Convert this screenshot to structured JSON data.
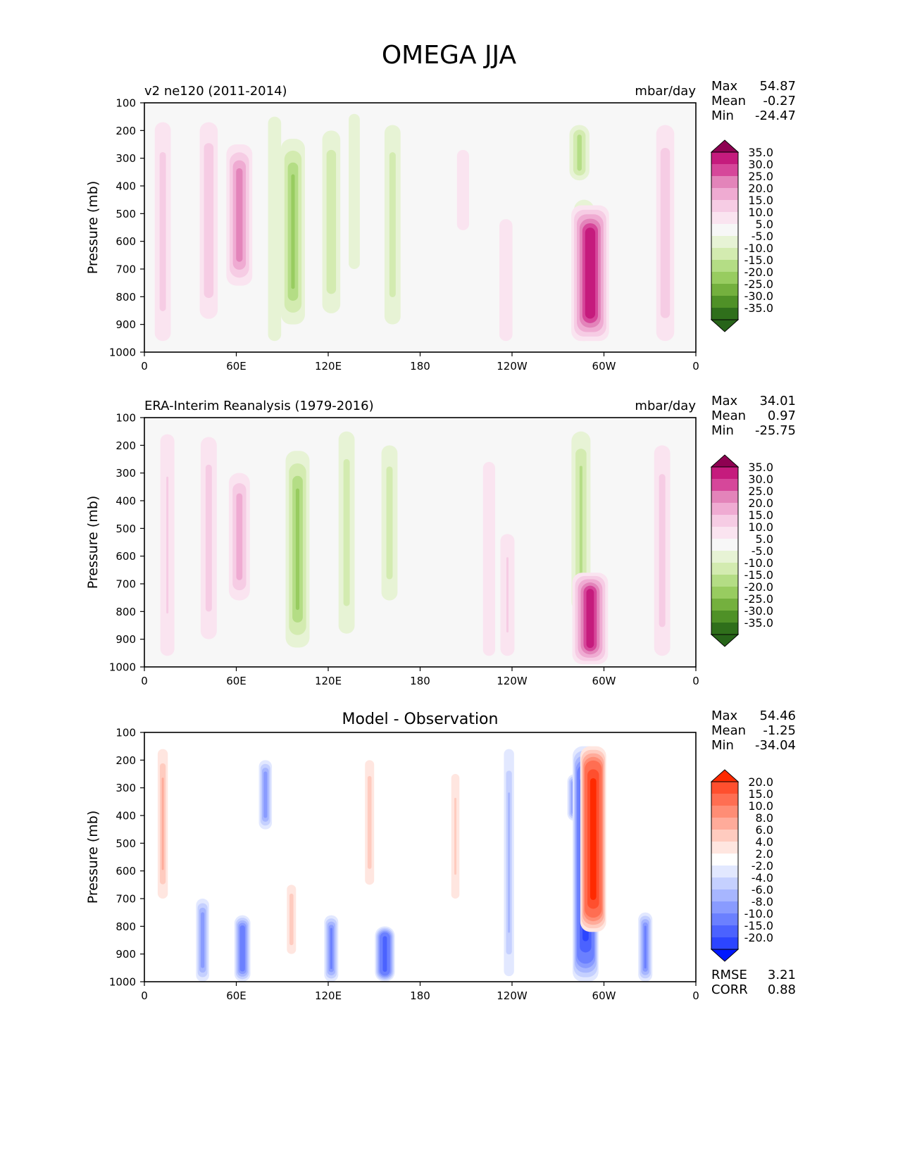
{
  "figure": {
    "title": "OMEGA JJA"
  },
  "chart_data": [
    {
      "type": "heatmap",
      "panel": "test",
      "title_left": "v2 ne120 (2011-2014)",
      "units": "mbar/day",
      "ylabel": "Pressure (mb)",
      "xticks": [
        "0",
        "60E",
        "120E",
        "180",
        "120W",
        "60W",
        "0"
      ],
      "x_values": [
        0,
        60,
        120,
        180,
        240,
        300,
        360
      ],
      "xlim": [
        0,
        360
      ],
      "yticks": [
        "100",
        "200",
        "300",
        "400",
        "500",
        "600",
        "700",
        "800",
        "900",
        "1000"
      ],
      "ylim": [
        1000,
        100
      ],
      "stats": {
        "max_label": "Max",
        "max": "54.87",
        "mean_label": "Mean",
        "mean": "-0.27",
        "min_label": "Min",
        "min": "-24.47"
      },
      "levels": [
        "35.0",
        "30.0",
        "25.0",
        "20.0",
        "15.0",
        "10.0",
        "5.0",
        "-5.0",
        "-10.0",
        "-15.0",
        "-20.0",
        "-25.0",
        "-30.0",
        "-35.0"
      ],
      "colors": [
        "#8e0152",
        "#c51b7d",
        "#d6479a",
        "#e384ba",
        "#efabd2",
        "#f6cce4",
        "#fae4f0",
        "#f7f7f7",
        "#e7f3d5",
        "#d3ebb0",
        "#b4dd85",
        "#98cc60",
        "#74b03e",
        "#4f9127",
        "#2f6f1b",
        "#276419"
      ],
      "features": [
        {
          "sign": "pos",
          "lon": 12,
          "p_top": 170,
          "p_bot": 960,
          "amp": 12
        },
        {
          "sign": "pos",
          "lon": 42,
          "p_top": 170,
          "p_bot": 880,
          "amp": 14
        },
        {
          "sign": "pos",
          "lon": 62,
          "p_top": 250,
          "p_bot": 760,
          "amp": 22
        },
        {
          "sign": "neg",
          "lon": 85,
          "p_top": 150,
          "p_bot": 960,
          "amp": 9
        },
        {
          "sign": "neg",
          "lon": 97,
          "p_top": 230,
          "p_bot": 900,
          "amp": 20
        },
        {
          "sign": "neg",
          "lon": 122,
          "p_top": 200,
          "p_bot": 860,
          "amp": 14
        },
        {
          "sign": "neg",
          "lon": 137,
          "p_top": 140,
          "p_bot": 700,
          "amp": 7
        },
        {
          "sign": "neg",
          "lon": 162,
          "p_top": 180,
          "p_bot": 900,
          "amp": 12
        },
        {
          "sign": "pos",
          "lon": 208,
          "p_top": 270,
          "p_bot": 560,
          "amp": 8
        },
        {
          "sign": "pos",
          "lon": 236,
          "p_top": 520,
          "p_bot": 960,
          "amp": 9
        },
        {
          "sign": "neg",
          "lon": 284,
          "p_top": 180,
          "p_bot": 380,
          "amp": 16
        },
        {
          "sign": "neg",
          "lon": 287,
          "p_top": 450,
          "p_bot": 960,
          "amp": 16
        },
        {
          "sign": "pos",
          "lon": 291,
          "p_top": 470,
          "p_bot": 960,
          "amp": 34
        },
        {
          "sign": "pos",
          "lon": 340,
          "p_top": 180,
          "p_bot": 960,
          "amp": 14
        }
      ]
    },
    {
      "type": "heatmap",
      "panel": "reference",
      "title_left": "ERA-Interim Reanalysis (1979-2016)",
      "units": "mbar/day",
      "ylabel": "Pressure (mb)",
      "xticks": [
        "0",
        "60E",
        "120E",
        "180",
        "120W",
        "60W",
        "0"
      ],
      "x_values": [
        0,
        60,
        120,
        180,
        240,
        300,
        360
      ],
      "xlim": [
        0,
        360
      ],
      "yticks": [
        "100",
        "200",
        "300",
        "400",
        "500",
        "600",
        "700",
        "800",
        "900",
        "1000"
      ],
      "ylim": [
        1000,
        100
      ],
      "stats": {
        "max_label": "Max",
        "max": "34.01",
        "mean_label": "Mean",
        "mean": "0.97",
        "min_label": "Min",
        "min": "-25.75"
      },
      "levels": [
        "35.0",
        "30.0",
        "25.0",
        "20.0",
        "15.0",
        "10.0",
        "5.0",
        "-5.0",
        "-10.0",
        "-15.0",
        "-20.0",
        "-25.0",
        "-30.0",
        "-35.0"
      ],
      "colors": [
        "#8e0152",
        "#c51b7d",
        "#d6479a",
        "#e384ba",
        "#efabd2",
        "#f6cce4",
        "#fae4f0",
        "#f7f7f7",
        "#e7f3d5",
        "#d3ebb0",
        "#b4dd85",
        "#98cc60",
        "#74b03e",
        "#4f9127",
        "#2f6f1b",
        "#276419"
      ],
      "features": [
        {
          "sign": "pos",
          "lon": 15,
          "p_top": 160,
          "p_bot": 960,
          "amp": 10
        },
        {
          "sign": "pos",
          "lon": 42,
          "p_top": 170,
          "p_bot": 900,
          "amp": 12
        },
        {
          "sign": "pos",
          "lon": 62,
          "p_top": 300,
          "p_bot": 760,
          "amp": 17
        },
        {
          "sign": "neg",
          "lon": 100,
          "p_top": 220,
          "p_bot": 930,
          "amp": 20
        },
        {
          "sign": "neg",
          "lon": 132,
          "p_top": 150,
          "p_bot": 880,
          "amp": 12
        },
        {
          "sign": "neg",
          "lon": 160,
          "p_top": 200,
          "p_bot": 760,
          "amp": 12
        },
        {
          "sign": "pos",
          "lon": 225,
          "p_top": 260,
          "p_bot": 960,
          "amp": 8
        },
        {
          "sign": "pos",
          "lon": 237,
          "p_top": 520,
          "p_bot": 960,
          "amp": 10
        },
        {
          "sign": "neg",
          "lon": 285,
          "p_top": 150,
          "p_bot": 800,
          "amp": 15
        },
        {
          "sign": "pos",
          "lon": 291,
          "p_top": 660,
          "p_bot": 990,
          "amp": 32
        },
        {
          "sign": "pos",
          "lon": 338,
          "p_top": 200,
          "p_bot": 960,
          "amp": 12
        }
      ]
    },
    {
      "type": "heatmap",
      "panel": "difference",
      "title": "Model - Observation",
      "ylabel": "Pressure (mb)",
      "xticks": [
        "0",
        "60E",
        "120E",
        "180",
        "120W",
        "60W",
        "0"
      ],
      "x_values": [
        0,
        60,
        120,
        180,
        240,
        300,
        360
      ],
      "xlim": [
        0,
        360
      ],
      "yticks": [
        "100",
        "200",
        "300",
        "400",
        "500",
        "600",
        "700",
        "800",
        "900",
        "1000"
      ],
      "ylim": [
        1000,
        100
      ],
      "stats": {
        "max_label": "Max",
        "max": "54.46",
        "mean_label": "Mean",
        "mean": "-1.25",
        "min_label": "Min",
        "min": "-34.04"
      },
      "metrics": {
        "rmse_label": "RMSE",
        "rmse": "3.21",
        "corr_label": "CORR",
        "corr": "0.88"
      },
      "levels": [
        "20.0",
        "15.0",
        "10.0",
        "8.0",
        "6.0",
        "4.0",
        "2.0",
        "-2.0",
        "-4.0",
        "-6.0",
        "-8.0",
        "-10.0",
        "-15.0",
        "-20.0"
      ],
      "colors": [
        "#ff2a00",
        "#ff4f2e",
        "#ff6e52",
        "#ff8d75",
        "#ffab9a",
        "#ffcbbf",
        "#ffe6e0",
        "#ffffff",
        "#e2e8ff",
        "#c5d0ff",
        "#a7b6ff",
        "#899bff",
        "#6b80ff",
        "#4b62ff",
        "#2c45ff",
        "#0018ff"
      ],
      "features": [
        {
          "sign": "pos",
          "lon": 12,
          "p_top": 160,
          "p_bot": 700,
          "amp": 6
        },
        {
          "sign": "neg",
          "lon": 38,
          "p_top": 700,
          "p_bot": 1000,
          "amp": 9
        },
        {
          "sign": "neg",
          "lon": 64,
          "p_top": 760,
          "p_bot": 1000,
          "amp": 12
        },
        {
          "sign": "neg",
          "lon": 79,
          "p_top": 200,
          "p_bot": 450,
          "amp": 9
        },
        {
          "sign": "pos",
          "lon": 96,
          "p_top": 650,
          "p_bot": 900,
          "amp": 5
        },
        {
          "sign": "neg",
          "lon": 122,
          "p_top": 760,
          "p_bot": 1000,
          "amp": 10
        },
        {
          "sign": "pos",
          "lon": 147,
          "p_top": 200,
          "p_bot": 650,
          "amp": 5
        },
        {
          "sign": "neg",
          "lon": 157,
          "p_top": 800,
          "p_bot": 1000,
          "amp": 16
        },
        {
          "sign": "pos",
          "lon": 203,
          "p_top": 250,
          "p_bot": 700,
          "amp": 4
        },
        {
          "sign": "neg",
          "lon": 238,
          "p_top": 160,
          "p_bot": 980,
          "amp": 6
        },
        {
          "sign": "neg",
          "lon": 281,
          "p_top": 250,
          "p_bot": 420,
          "amp": 11
        },
        {
          "sign": "neg",
          "lon": 288,
          "p_top": 150,
          "p_bot": 1000,
          "amp": 22
        },
        {
          "sign": "pos",
          "lon": 293,
          "p_top": 150,
          "p_bot": 820,
          "amp": 22
        },
        {
          "sign": "neg",
          "lon": 327,
          "p_top": 750,
          "p_bot": 1000,
          "amp": 10
        }
      ]
    }
  ]
}
